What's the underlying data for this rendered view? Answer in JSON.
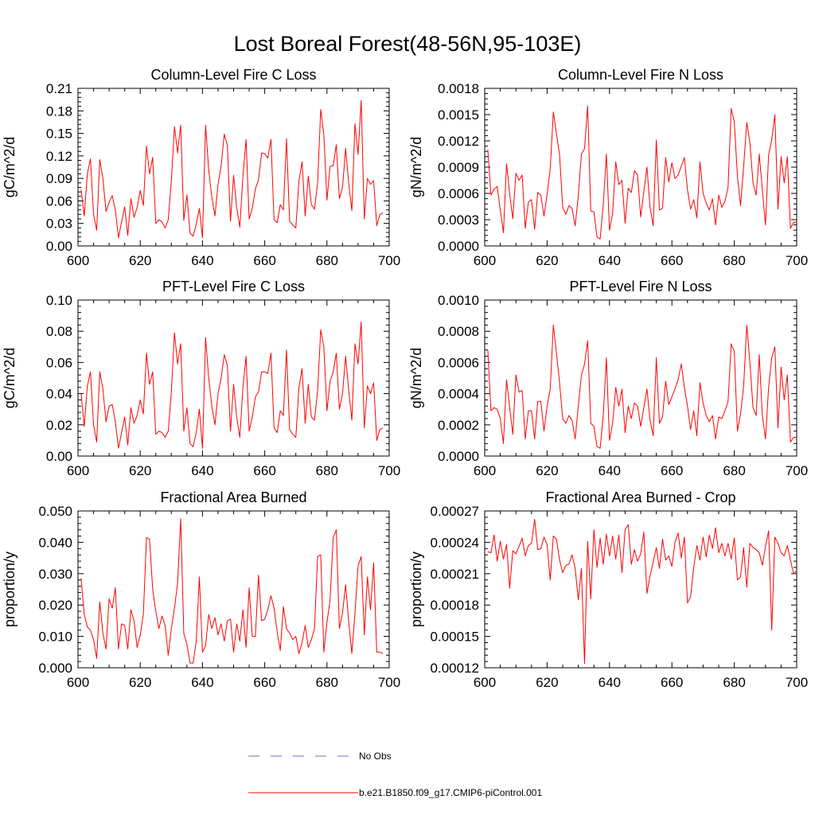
{
  "figure": {
    "title": "Lost Boreal Forest(48-56N,95-103E)"
  },
  "legend": [
    {
      "label": "No Obs",
      "color": "#6b6bd6",
      "style": "dashed"
    },
    {
      "label": "b.e21.B1850.f09_g17.CMIP6-piControl.001",
      "color": "#ff0000",
      "style": "solid"
    }
  ],
  "chart_data": [
    {
      "type": "line",
      "title": "Column-Level Fire C Loss",
      "xlabel": "",
      "ylabel": "gC/m^2/d",
      "xlim": [
        600,
        700
      ],
      "ylim": [
        0,
        0.21
      ],
      "xticks": [
        "600",
        "620",
        "640",
        "660",
        "680",
        "700"
      ],
      "yticks": [
        "0.00",
        "0.03",
        "0.06",
        "0.09",
        "0.12",
        "0.15",
        "0.18",
        "0.21"
      ],
      "x_start": 601,
      "series": [
        {
          "name": "b.e21.B1850.f09_g17.CMIP6-piControl.001",
          "color": "#ff0000",
          "values": [
            0.075,
            0.04,
            0.096,
            0.116,
            0.042,
            0.021,
            0.115,
            0.09,
            0.046,
            0.058,
            0.067,
            0.048,
            0.011,
            0.032,
            0.052,
            0.014,
            0.063,
            0.038,
            0.051,
            0.074,
            0.054,
            0.133,
            0.096,
            0.118,
            0.03,
            0.035,
            0.032,
            0.024,
            0.035,
            0.087,
            0.159,
            0.124,
            0.161,
            0.034,
            0.068,
            0.017,
            0.013,
            0.029,
            0.05,
            0.011,
            0.161,
            0.101,
            0.065,
            0.04,
            0.082,
            0.107,
            0.149,
            0.134,
            0.033,
            0.094,
            0.051,
            0.025,
            0.093,
            0.142,
            0.036,
            0.05,
            0.076,
            0.088,
            0.124,
            0.123,
            0.117,
            0.142,
            0.035,
            0.031,
            0.055,
            0.048,
            0.143,
            0.033,
            0.028,
            0.024,
            0.087,
            0.112,
            0.04,
            0.093,
            0.055,
            0.049,
            0.084,
            0.182,
            0.148,
            0.061,
            0.106,
            0.107,
            0.135,
            0.063,
            0.078,
            0.13,
            0.083,
            0.047,
            0.163,
            0.122,
            0.194,
            0.036,
            0.09,
            0.082,
            0.087,
            0.027,
            0.042,
            0.044
          ]
        }
      ]
    },
    {
      "type": "line",
      "title": "Column-Level Fire N Loss",
      "xlabel": "",
      "ylabel": "gN/m^2/d",
      "xlim": [
        600,
        700
      ],
      "ylim": [
        0,
        0.0018
      ],
      "xticks": [
        "600",
        "620",
        "640",
        "660",
        "680",
        "700"
      ],
      "yticks": [
        "0.0000",
        "0.0003",
        "0.0006",
        "0.0009",
        "0.0012",
        "0.0015",
        "0.0018"
      ],
      "x_start": 601,
      "series": [
        {
          "name": "b.e21.B1850.f09_g17.CMIP6-piControl.001",
          "color": "#ff0000",
          "values": [
            0.0011,
            0.00058,
            0.00065,
            0.00068,
            0.00041,
            0.00015,
            0.00094,
            0.00059,
            0.00031,
            0.00083,
            0.00075,
            0.00081,
            0.0002,
            0.0005,
            0.00053,
            0.00019,
            0.00061,
            0.00058,
            0.00034,
            0.00059,
            0.00088,
            0.00153,
            0.00128,
            0.00104,
            0.00044,
            0.00036,
            0.00046,
            0.00043,
            0.00023,
            0.00057,
            0.00105,
            0.00111,
            0.0016,
            0.0004,
            0.00039,
            0.0001,
            8e-05,
            0.00047,
            0.00105,
            0.00018,
            0.00037,
            0.00096,
            0.0007,
            0.00075,
            0.00026,
            0.00066,
            0.00061,
            0.00086,
            0.00081,
            0.00033,
            0.00062,
            0.0009,
            0.00044,
            0.00023,
            0.00121,
            0.00041,
            0.00043,
            0.00101,
            0.00073,
            0.00095,
            0.00077,
            0.00081,
            0.00091,
            0.00101,
            0.00064,
            0.00042,
            0.00053,
            0.00032,
            0.00096,
            0.0006,
            0.00049,
            0.00041,
            0.00054,
            0.00024,
            0.00058,
            0.00044,
            0.00051,
            0.00067,
            0.00157,
            0.00142,
            0.0008,
            0.00046,
            0.00091,
            0.00141,
            0.00118,
            0.00072,
            0.00058,
            0.00105,
            0.00064,
            0.00024,
            0.00104,
            0.00121,
            0.0015,
            0.00042,
            0.00102,
            0.00072,
            0.00102,
            0.0002,
            0.00027,
            0.00027
          ]
        }
      ]
    },
    {
      "type": "line",
      "title": "PFT-Level Fire C Loss",
      "xlabel": "",
      "ylabel": "gC/m^2/d",
      "xlim": [
        600,
        700
      ],
      "ylim": [
        0,
        0.1
      ],
      "xticks": [
        "600",
        "620",
        "640",
        "660",
        "680",
        "700"
      ],
      "yticks": [
        "0.00",
        "0.02",
        "0.04",
        "0.06",
        "0.08",
        "0.10"
      ],
      "x_start": 601,
      "series": [
        {
          "name": "b.e21.B1850.f09_g17.CMIP6-piControl.001",
          "color": "#ff0000",
          "values": [
            0.04,
            0.019,
            0.045,
            0.054,
            0.02,
            0.009,
            0.054,
            0.043,
            0.022,
            0.032,
            0.033,
            0.022,
            0.005,
            0.015,
            0.025,
            0.007,
            0.031,
            0.021,
            0.026,
            0.036,
            0.027,
            0.066,
            0.046,
            0.054,
            0.014,
            0.016,
            0.015,
            0.012,
            0.016,
            0.041,
            0.079,
            0.059,
            0.072,
            0.016,
            0.031,
            0.008,
            0.006,
            0.015,
            0.03,
            0.005,
            0.076,
            0.05,
            0.032,
            0.02,
            0.04,
            0.05,
            0.065,
            0.058,
            0.016,
            0.046,
            0.025,
            0.012,
            0.044,
            0.064,
            0.016,
            0.025,
            0.038,
            0.041,
            0.054,
            0.054,
            0.053,
            0.066,
            0.018,
            0.015,
            0.029,
            0.026,
            0.068,
            0.017,
            0.014,
            0.012,
            0.044,
            0.056,
            0.021,
            0.046,
            0.025,
            0.023,
            0.042,
            0.081,
            0.07,
            0.029,
            0.048,
            0.054,
            0.066,
            0.03,
            0.04,
            0.064,
            0.042,
            0.023,
            0.072,
            0.059,
            0.086,
            0.018,
            0.045,
            0.04,
            0.047,
            0.01,
            0.017,
            0.018
          ]
        }
      ]
    },
    {
      "type": "line",
      "title": "PFT-Level Fire N Loss",
      "xlabel": "",
      "ylabel": "gN/m^2/d",
      "xlim": [
        600,
        700
      ],
      "ylim": [
        0,
        0.001
      ],
      "xticks": [
        "600",
        "620",
        "640",
        "660",
        "680",
        "700"
      ],
      "yticks": [
        "0.0000",
        "0.0002",
        "0.0004",
        "0.0006",
        "0.0008",
        "0.0010"
      ],
      "x_start": 601,
      "series": [
        {
          "name": "b.e21.B1850.f09_g17.CMIP6-piControl.001",
          "color": "#ff0000",
          "values": [
            0.00068,
            0.00029,
            0.00031,
            0.0003,
            0.00024,
            8e-05,
            0.00049,
            0.00031,
            0.00014,
            0.00052,
            0.00041,
            0.00042,
            0.00011,
            0.00029,
            0.00029,
            0.00011,
            0.00035,
            0.00035,
            0.00016,
            0.00032,
            0.00043,
            0.00084,
            0.00066,
            0.00047,
            0.00024,
            0.00021,
            0.00026,
            0.00023,
            0.00011,
            0.00032,
            0.00052,
            0.00059,
            0.00074,
            0.00021,
            0.00019,
            6e-05,
            5e-05,
            0.00026,
            0.00063,
            0.0001,
            0.00021,
            0.00044,
            0.00032,
            0.00043,
            0.00015,
            0.00032,
            0.00024,
            0.00034,
            0.00032,
            0.00019,
            0.00031,
            0.00043,
            0.00023,
            0.00013,
            0.00063,
            0.00021,
            0.00025,
            0.00048,
            0.00033,
            0.00038,
            0.00043,
            0.00049,
            0.00059,
            0.00044,
            0.00032,
            0.00017,
            0.00029,
            0.00013,
            0.00047,
            0.00034,
            0.00026,
            0.00022,
            0.00026,
            0.00011,
            0.00025,
            0.00024,
            0.00029,
            0.00035,
            0.00072,
            0.00067,
            0.00016,
            0.00027,
            0.00045,
            0.00084,
            0.0006,
            0.00031,
            0.00026,
            0.00065,
            0.00026,
            0.00011,
            0.00044,
            0.00063,
            0.0007,
            0.00018,
            0.00057,
            0.00036,
            0.00052,
            9e-05,
            0.00012,
            0.00012
          ]
        }
      ]
    },
    {
      "type": "line",
      "title": "Fractional Area Burned",
      "xlabel": "",
      "ylabel": "proportion/y",
      "xlim": [
        600,
        700
      ],
      "ylim": [
        0,
        0.05
      ],
      "xticks": [
        "600",
        "620",
        "640",
        "660",
        "680",
        "700"
      ],
      "yticks": [
        "0.000",
        "0.010",
        "0.020",
        "0.030",
        "0.040",
        "0.050"
      ],
      "x_start": 601,
      "series": [
        {
          "name": "b.e21.B1850.f09_g17.CMIP6-piControl.001",
          "color": "#ff0000",
          "values": [
            0.0285,
            0.017,
            0.013,
            0.012,
            0.009,
            0.003,
            0.021,
            0.011,
            0.006,
            0.022,
            0.019,
            0.0255,
            0.006,
            0.014,
            0.0135,
            0.006,
            0.0185,
            0.015,
            0.0065,
            0.0105,
            0.017,
            0.0415,
            0.041,
            0.025,
            0.018,
            0.0125,
            0.0165,
            0.0135,
            0.004,
            0.0125,
            0.019,
            0.027,
            0.0475,
            0.011,
            0.0075,
            0.0015,
            0.0015,
            0.0085,
            0.029,
            0.005,
            0.007,
            0.017,
            0.0125,
            0.016,
            0.0105,
            0.014,
            0.0085,
            0.015,
            0.0155,
            0.005,
            0.014,
            0.0085,
            0.0185,
            0.0065,
            0.0255,
            0.01,
            0.01,
            0.0295,
            0.015,
            0.0155,
            0.0185,
            0.023,
            0.019,
            0.0115,
            0.0055,
            0.0195,
            0.0125,
            0.011,
            0.009,
            0.01,
            0.0045,
            0.008,
            0.0135,
            0.0065,
            0.009,
            0.0125,
            0.0355,
            0.036,
            0.005,
            0.0145,
            0.0215,
            0.0415,
            0.044,
            0.0125,
            0.0175,
            0.0265,
            0.0145,
            0.0045,
            0.0175,
            0.0325,
            0.0355,
            0.0105,
            0.029,
            0.0185,
            0.0335,
            0.005,
            0.005,
            0.0045
          ]
        }
      ]
    },
    {
      "type": "line",
      "title": "Fractional Area Burned - Crop",
      "xlabel": "",
      "ylabel": "proportion/y",
      "xlim": [
        600,
        700
      ],
      "ylim": [
        0.00012,
        0.00027
      ],
      "xticks": [
        "600",
        "620",
        "640",
        "660",
        "680",
        "700"
      ],
      "yticks": [
        "0.00012",
        "0.00015",
        "0.00018",
        "0.00021",
        "0.00024",
        "0.00027"
      ],
      "x_start": 601,
      "series": [
        {
          "name": "b.e21.B1850.f09_g17.CMIP6-piControl.001",
          "color": "#ff0000",
          "values": [
            0.000231,
            0.00023,
            0.000247,
            0.000222,
            0.000241,
            0.000224,
            0.000238,
            0.000196,
            0.000232,
            0.000229,
            0.000236,
            0.000244,
            0.000227,
            0.000237,
            0.000239,
            0.000262,
            0.000233,
            0.000234,
            0.000245,
            0.000238,
            0.000204,
            0.000246,
            0.000243,
            0.000223,
            0.000211,
            0.000218,
            0.000219,
            0.000228,
            0.000215,
            0.000185,
            0.000215,
            0.000124,
            0.000241,
            0.000186,
            0.000252,
            0.000216,
            0.000244,
            0.000219,
            0.000248,
            0.000227,
            0.000246,
            0.000224,
            0.000247,
            0.000211,
            0.000252,
            0.000257,
            0.000219,
            0.000233,
            0.000222,
            0.000229,
            0.00025,
            0.000191,
            0.000208,
            0.000221,
            0.000235,
            0.000215,
            0.000243,
            0.000223,
            0.000227,
            0.000217,
            0.00024,
            0.000249,
            0.000225,
            0.000245,
            0.000182,
            0.000188,
            0.000216,
            0.000237,
            0.000223,
            0.000245,
            0.000226,
            0.000247,
            0.000234,
            0.000254,
            0.00023,
            0.000239,
            0.000227,
            0.000239,
            0.000224,
            0.000244,
            0.000204,
            0.000207,
            0.000235,
            0.000197,
            0.000239,
            0.000235,
            0.000233,
            0.00023,
            0.000218,
            0.000236,
            0.000251,
            0.000156,
            0.000245,
            0.000239,
            0.00023,
            0.000227,
            0.000237,
            0.000223,
            0.00021,
            0.000213
          ]
        }
      ]
    }
  ]
}
